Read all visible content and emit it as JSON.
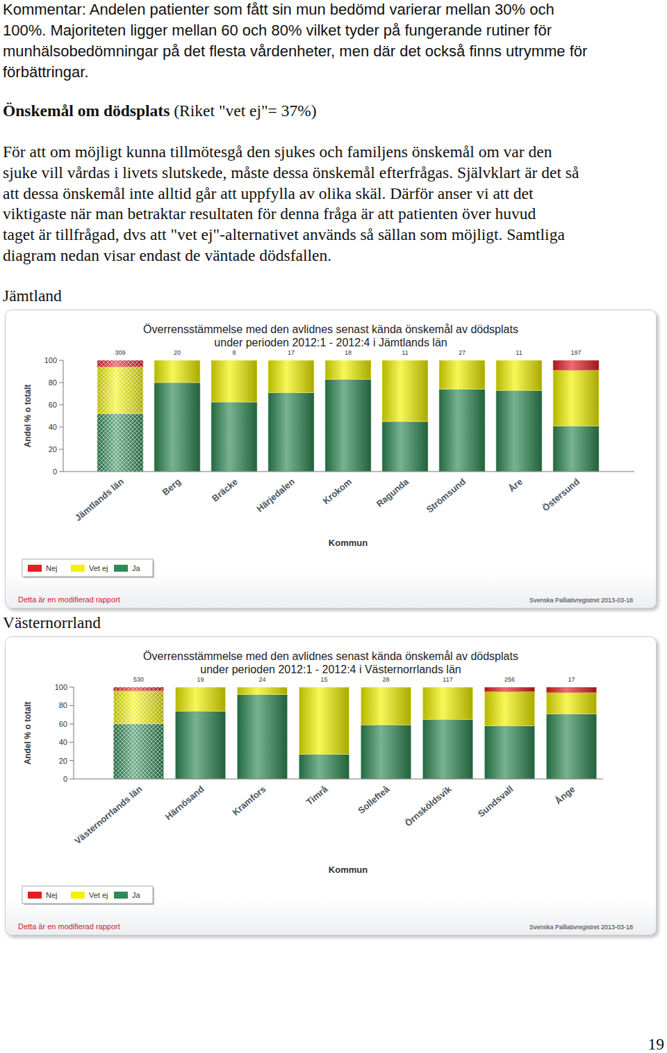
{
  "document": {
    "intro": [
      "Kommentar: Andelen patienter som fått sin mun bedömd varierar mellan 30% och",
      "100%. Majoriteten ligger mellan 60 och 80% vilket tyder på fungerande rutiner för",
      "munhälsobedömningar på det flesta vårdenheter, men där det också finns utrymme för",
      "förbättringar."
    ],
    "heading": {
      "bold": "Önskemål om dödsplats",
      "rest": "(Riket \"vet ej\"= 37%)"
    },
    "body": [
      "För att om möjligt kunna tillmötesgå den sjukes och familjens önskemål om var den",
      "sjuke vill vårdas i livets slutskede, måste dessa önskemål efterfrågas. Självklart är det så",
      "att dessa önskemål inte alltid går att uppfylla av olika skäl. Därför anser vi att det",
      "viktigaste när man betraktar resultaten för denna fråga är att patienten över huvud",
      "taget är tillfrågad, dvs att \"vet ej\"-alternativet används så sällan som möjligt. Samtliga",
      "diagram nedan visar endast de väntade dödsfallen."
    ],
    "sections": [
      "Jämtland",
      "Västernorrland"
    ],
    "page_number": "19"
  },
  "chart_data": [
    {
      "type": "bar",
      "stacked": true,
      "title": "Överrensstämmelse med den avlidnes senast kända önskemål av dödsplats",
      "subtitle": "under perioden 2012:1 - 2012:4 i Jämtlands län",
      "x_label": "Kommun",
      "y_label": "Andel % o totalt",
      "categories": [
        "Jämtlands län",
        "Berg",
        "Bräcke",
        "Härjedalen",
        "Krokom",
        "Ragunda",
        "Strömsund",
        "Åre",
        "Östersund"
      ],
      "counts": [
        309,
        20,
        8,
        17,
        18,
        11,
        27,
        11,
        197
      ],
      "series": [
        {
          "name": "Nej",
          "color": "#e31e24",
          "values": [
            6,
            0,
            0,
            0,
            0,
            0,
            0,
            0,
            9
          ]
        },
        {
          "name": "Vet ej",
          "color": "#f2f200",
          "values": [
            42,
            20,
            37.5,
            29,
            17,
            55,
            26,
            27,
            50
          ]
        },
        {
          "name": "Ja",
          "color": "#2f8a55",
          "values": [
            52,
            80,
            62.5,
            71,
            83,
            45,
            74,
            73,
            41
          ]
        }
      ],
      "ylim": [
        0,
        100
      ],
      "yticks": [
        0,
        20,
        40,
        60,
        80,
        100
      ],
      "grid": false,
      "legend": "bottom-left",
      "annotations": [
        "Detta är en modifierad rapport",
        "Svenska Palliativregistret 2013-03-18"
      ]
    },
    {
      "type": "bar",
      "stacked": true,
      "title": "Överrensstämmelse med den avlidnes senast kända önskemål av dödsplats",
      "subtitle": "under perioden 2012:1 - 2012:4 i Västernorrlands län",
      "x_label": "Kommun",
      "y_label": "Andel % o totalt",
      "categories": [
        "Västernorrlands län",
        "Härnösand",
        "Kramfors",
        "Timrå",
        "Sollefteå",
        "Örnsköldsvik",
        "Sundsvall",
        "Ånge"
      ],
      "counts": [
        530,
        19,
        24,
        15,
        28,
        117,
        256,
        17
      ],
      "series": [
        {
          "name": "Nej",
          "color": "#e31e24",
          "values": [
            4,
            0,
            0,
            0,
            0,
            0,
            5,
            6
          ]
        },
        {
          "name": "Vet ej",
          "color": "#f2f200",
          "values": [
            36,
            26,
            8,
            73,
            41,
            35,
            37,
            23
          ]
        },
        {
          "name": "Ja",
          "color": "#2f8a55",
          "values": [
            60,
            74,
            92,
            27,
            59,
            65,
            58,
            71
          ]
        }
      ],
      "ylim": [
        0,
        100
      ],
      "yticks": [
        0,
        20,
        40,
        60,
        80,
        100
      ],
      "grid": false,
      "legend": "bottom-left",
      "annotations": [
        "Detta är en modifierad rapport",
        "Svenska Palliativregistret 2013-03-18"
      ]
    }
  ]
}
